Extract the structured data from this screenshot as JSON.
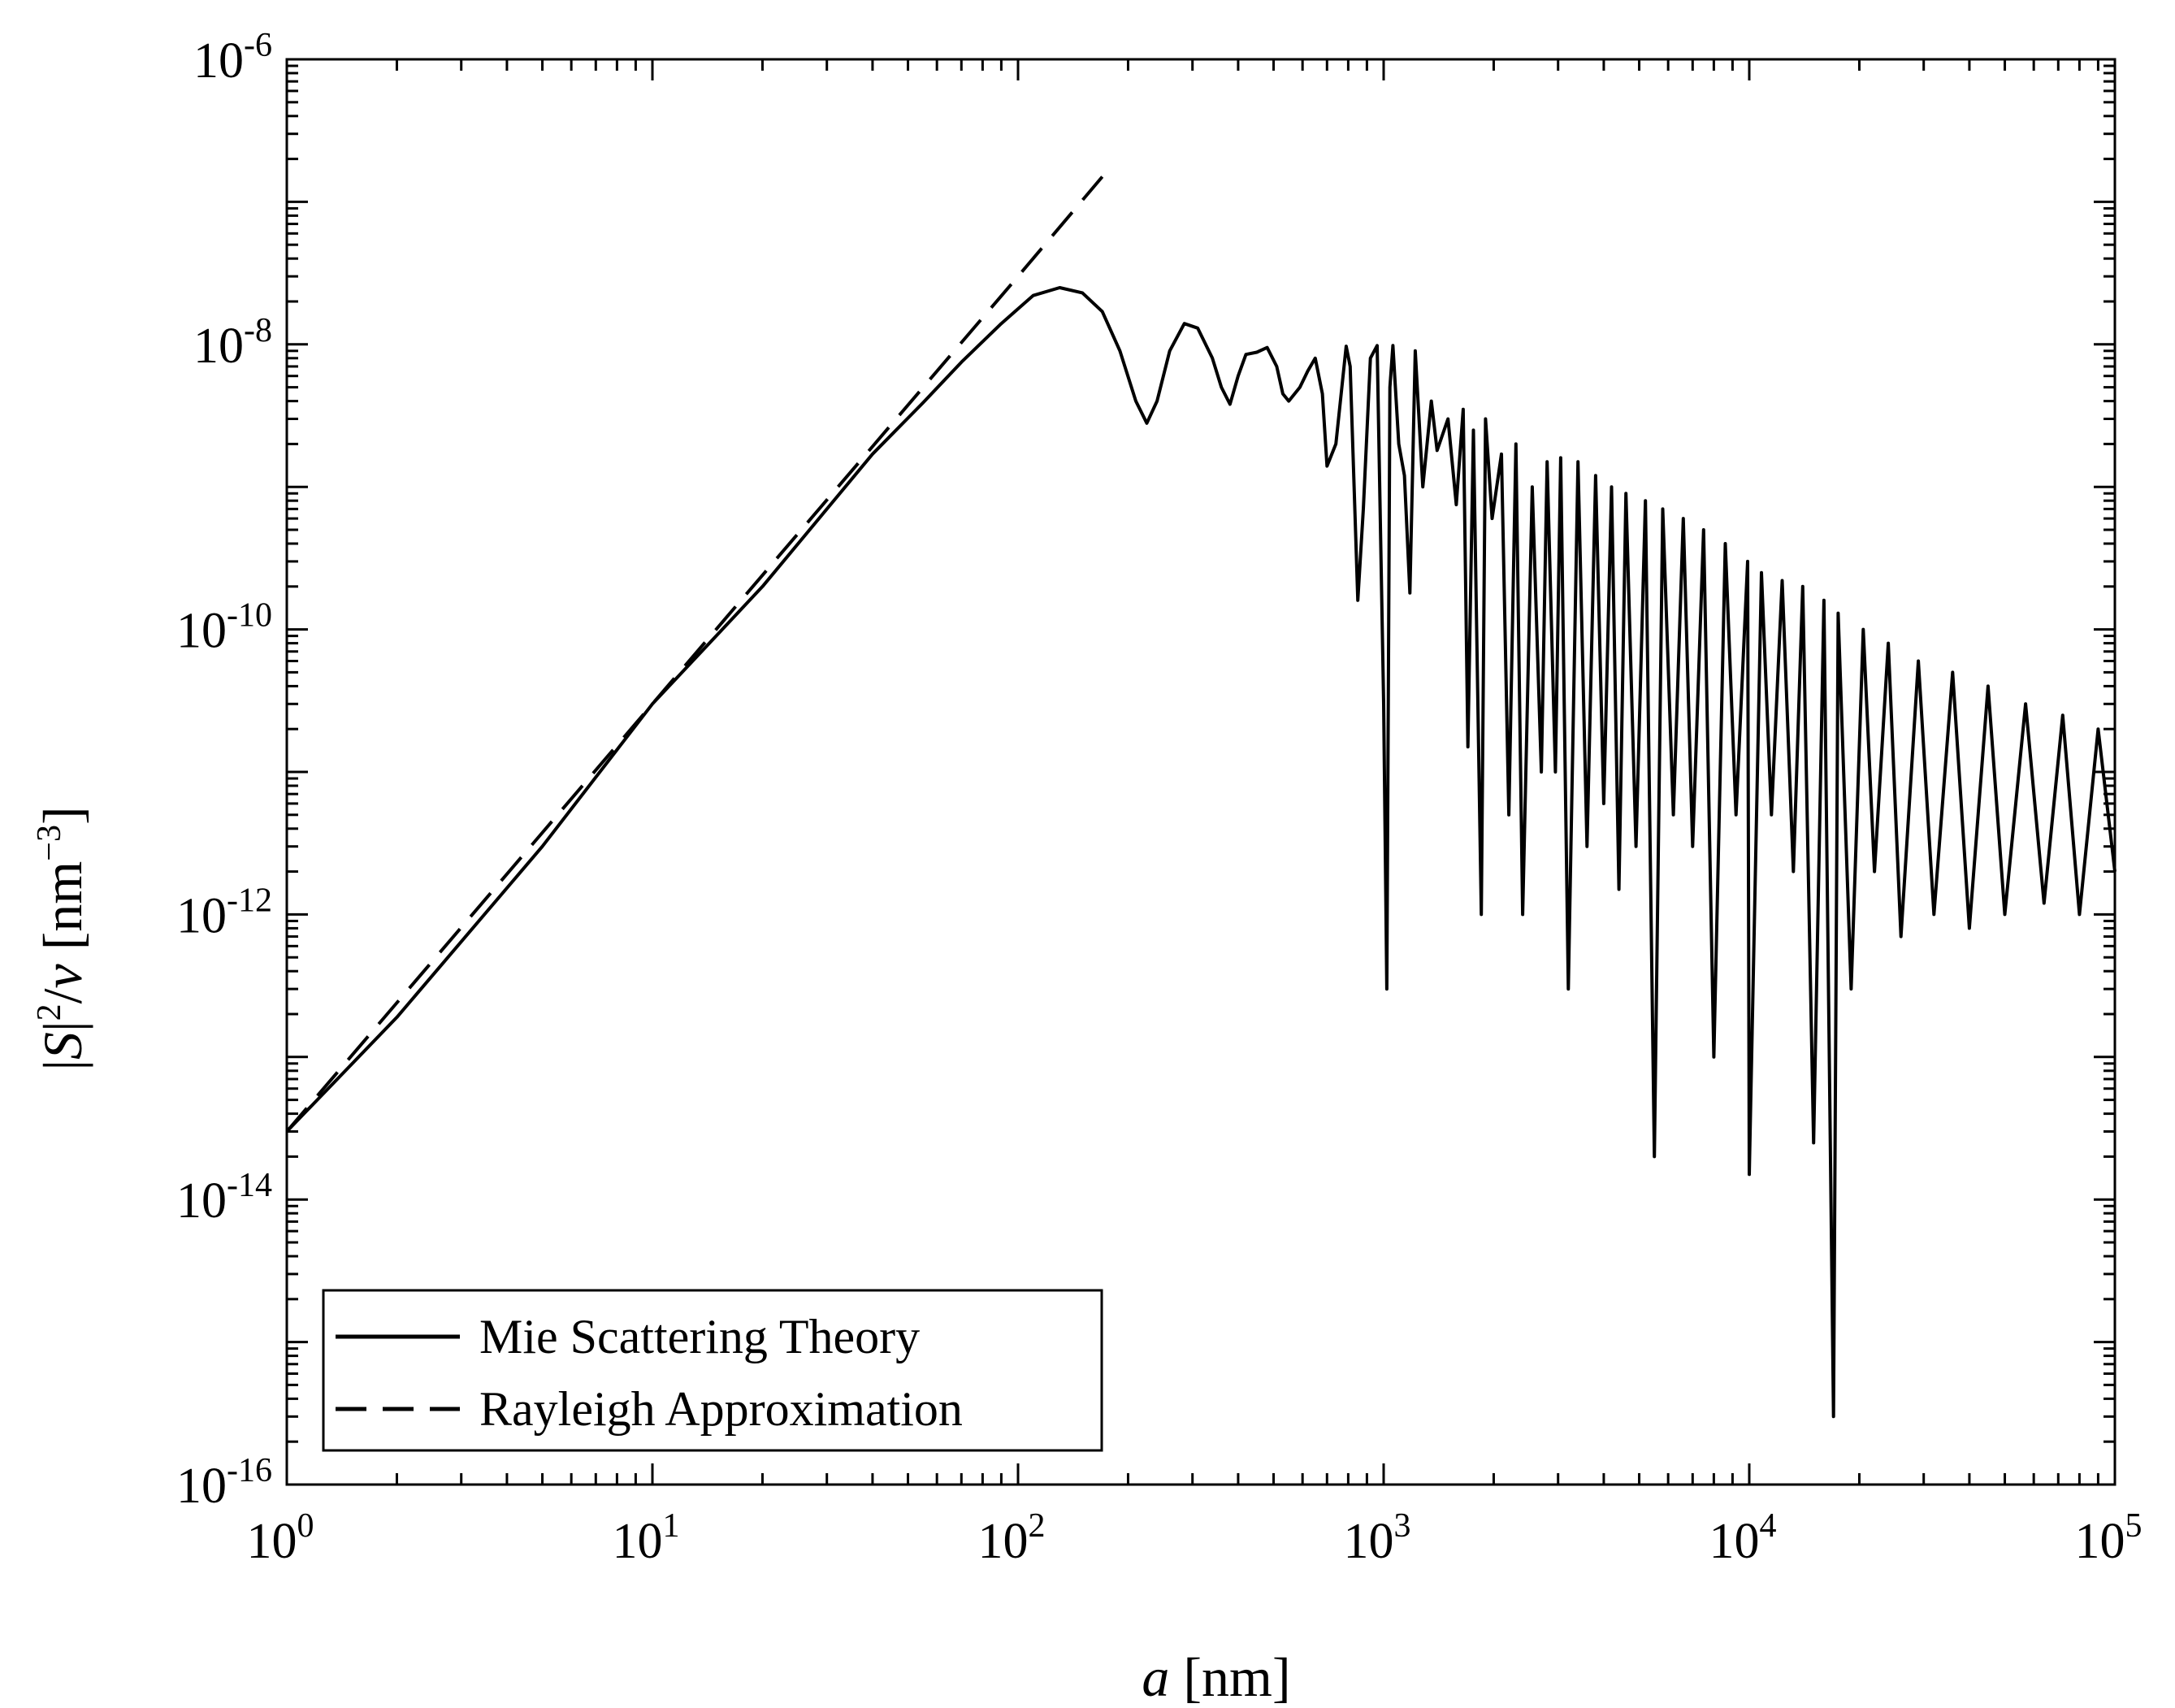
{
  "chart_data": {
    "type": "line",
    "title": "",
    "xscale": "log",
    "yscale": "log",
    "xlim": [
      1,
      100000
    ],
    "ylim": [
      1e-16,
      1e-06
    ],
    "grid": false,
    "legend_position": "bottom-left",
    "x_ticks": [
      {
        "value": 1,
        "base": "10",
        "exp": "0"
      },
      {
        "value": 10,
        "base": "10",
        "exp": "1"
      },
      {
        "value": 100,
        "base": "10",
        "exp": "2"
      },
      {
        "value": 1000,
        "base": "10",
        "exp": "3"
      },
      {
        "value": 10000,
        "base": "10",
        "exp": "4"
      },
      {
        "value": 100000,
        "base": "10",
        "exp": "5"
      }
    ],
    "y_ticks": [
      {
        "value": 1e-16,
        "base": "10",
        "exp": "-16"
      },
      {
        "value": 1e-14,
        "base": "10",
        "exp": "-14"
      },
      {
        "value": 1e-12,
        "base": "10",
        "exp": "-12"
      },
      {
        "value": 1e-10,
        "base": "10",
        "exp": "-10"
      },
      {
        "value": 1e-08,
        "base": "10",
        "exp": "-8"
      },
      {
        "value": 1e-06,
        "base": "10",
        "exp": "-6"
      }
    ],
    "xlabel": {
      "symbol": "a",
      "unit": " [nm]"
    },
    "ylabel": {
      "lead": "|",
      "symbol_s": "S",
      "mid": "|",
      "exp2": "2",
      "slash": "/",
      "symbol_v": "v",
      "unit_open": " [nm",
      "exp_unit": "−3",
      "unit_close": "]"
    },
    "series": [
      {
        "name": "Mie Scattering Theory",
        "style": "solid",
        "color": "#000000",
        "points": [
          [
            1,
            3e-14
          ],
          [
            2,
            1.9e-13
          ],
          [
            5,
            3e-12
          ],
          [
            10,
            3e-11
          ],
          [
            20,
            2e-10
          ],
          [
            40,
            1.7e-09
          ],
          [
            55,
            3.9e-09
          ],
          [
            70,
            7.5e-09
          ],
          [
            90,
            1.4e-08
          ],
          [
            110,
            2.2e-08
          ],
          [
            130,
            2.5e-08
          ],
          [
            150,
            2.3e-08
          ],
          [
            170,
            1.7e-08
          ],
          [
            190,
            9e-09
          ],
          [
            210,
            4e-09
          ],
          [
            225,
            2.8e-09
          ],
          [
            240,
            4e-09
          ],
          [
            260,
            9e-09
          ],
          [
            285,
            1.4e-08
          ],
          [
            310,
            1.3e-08
          ],
          [
            340,
            8e-09
          ],
          [
            360,
            5e-09
          ],
          [
            380,
            3.8e-09
          ],
          [
            400,
            6e-09
          ],
          [
            420,
            8.5e-09
          ],
          [
            450,
            8.8e-09
          ],
          [
            480,
            9.5e-09
          ],
          [
            510,
            7e-09
          ],
          [
            530,
            4.5e-09
          ],
          [
            550,
            4e-09
          ],
          [
            590,
            5e-09
          ],
          [
            620,
            6.5e-09
          ],
          [
            650,
            8e-09
          ],
          [
            680,
            4.5e-09
          ],
          [
            700,
            1.4e-09
          ],
          [
            740,
            2e-09
          ],
          [
            790,
            9.7e-09
          ],
          [
            810,
            7e-09
          ],
          [
            850,
            1.6e-10
          ],
          [
            880,
            7e-10
          ],
          [
            920,
            8e-09
          ],
          [
            960,
            9.8e-09
          ],
          [
            1000,
            3e-11
          ],
          [
            1020,
            3e-13
          ],
          [
            1040,
            5e-09
          ],
          [
            1060,
            9.8e-09
          ],
          [
            1100,
            2e-09
          ],
          [
            1140,
            1.2e-09
          ],
          [
            1180,
            1.8e-10
          ],
          [
            1220,
            9e-09
          ],
          [
            1280,
            1e-09
          ],
          [
            1350,
            4e-09
          ],
          [
            1400,
            1.8e-09
          ],
          [
            1500,
            3e-09
          ],
          [
            1580,
            7.5e-10
          ],
          [
            1650,
            3.5e-09
          ],
          [
            1700,
            1.5e-11
          ],
          [
            1760,
            2.5e-09
          ],
          [
            1850,
            1e-12
          ],
          [
            1900,
            3e-09
          ],
          [
            1980,
            6e-10
          ],
          [
            2100,
            1.7e-09
          ],
          [
            2200,
            5e-12
          ],
          [
            2300,
            2e-09
          ],
          [
            2400,
            1e-12
          ],
          [
            2550,
            1e-09
          ],
          [
            2700,
            1e-11
          ],
          [
            2800,
            1.5e-09
          ],
          [
            2950,
            1e-11
          ],
          [
            3050,
            1.6e-09
          ],
          [
            3200,
            3e-13
          ],
          [
            3400,
            1.5e-09
          ],
          [
            3600,
            3e-12
          ],
          [
            3800,
            1.2e-09
          ],
          [
            4000,
            6e-12
          ],
          [
            4200,
            1e-09
          ],
          [
            4400,
            1.5e-12
          ],
          [
            4600,
            9e-10
          ],
          [
            4900,
            3e-12
          ],
          [
            5200,
            8e-10
          ],
          [
            5500,
            2e-14
          ],
          [
            5800,
            7e-10
          ],
          [
            6200,
            5e-12
          ],
          [
            6600,
            6e-10
          ],
          [
            7000,
            3e-12
          ],
          [
            7500,
            5e-10
          ],
          [
            8000,
            1e-13
          ],
          [
            8600,
            4e-10
          ],
          [
            9200,
            5e-12
          ],
          [
            9900,
            3e-10
          ],
          [
            10000,
            1.5e-14
          ],
          [
            10800,
            2.5e-10
          ],
          [
            11500,
            5e-12
          ],
          [
            12300,
            2.2e-10
          ],
          [
            13200,
            2e-12
          ],
          [
            14000,
            2e-10
          ],
          [
            15000,
            2.5e-14
          ],
          [
            16000,
            1.6e-10
          ],
          [
            17000,
            3e-16
          ],
          [
            17500,
            1.3e-10
          ],
          [
            19000,
            3e-13
          ],
          [
            20500,
            1e-10
          ],
          [
            22000,
            2e-12
          ],
          [
            24000,
            8e-11
          ],
          [
            26000,
            7e-13
          ],
          [
            29000,
            6e-11
          ],
          [
            32000,
            1e-12
          ],
          [
            36000,
            5e-11
          ],
          [
            40000,
            8e-13
          ],
          [
            45000,
            4e-11
          ],
          [
            50000,
            1e-12
          ],
          [
            57000,
            3e-11
          ],
          [
            64000,
            1.2e-12
          ],
          [
            72000,
            2.5e-11
          ],
          [
            80000,
            1e-12
          ],
          [
            90000,
            2e-11
          ],
          [
            100000,
            2e-12
          ]
        ]
      },
      {
        "name": "Rayleigh Approximation",
        "style": "dashed",
        "color": "#000000",
        "points": [
          [
            1,
            3e-14
          ],
          [
            10,
            3e-11
          ],
          [
            100,
            3e-08
          ],
          [
            170,
            1.5e-07
          ]
        ]
      }
    ]
  }
}
